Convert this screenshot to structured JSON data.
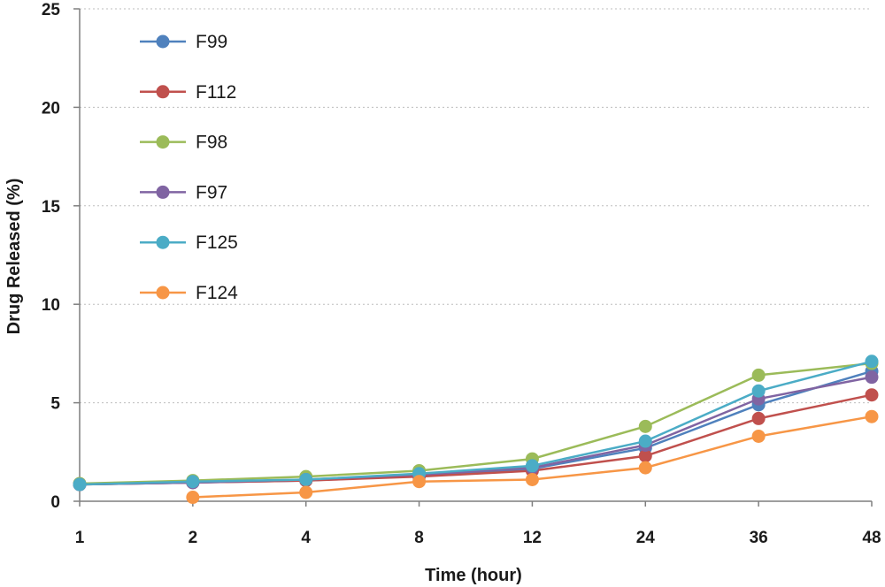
{
  "chart_data": {
    "type": "line",
    "title": "",
    "xlabel": "Time (hour)",
    "ylabel": "Drug Released (%)",
    "categories": [
      "1",
      "2",
      "4",
      "8",
      "12",
      "24",
      "36",
      "48"
    ],
    "yticks": [
      "0",
      "5",
      "10",
      "15",
      "20",
      "25"
    ],
    "ylim": [
      0,
      25
    ],
    "grid": true,
    "legend_position": "top-left",
    "series": [
      {
        "name": "F99",
        "color": "#4F81BD",
        "values": [
          0.85,
          0.95,
          1.05,
          1.3,
          1.65,
          2.7,
          4.9,
          6.6
        ]
      },
      {
        "name": "F112",
        "color": "#C0504D",
        "values": [
          0.85,
          0.95,
          1.05,
          1.25,
          1.55,
          2.3,
          4.2,
          5.4
        ]
      },
      {
        "name": "F98",
        "color": "#9BBB59",
        "values": [
          0.9,
          1.05,
          1.25,
          1.55,
          2.15,
          3.8,
          6.4,
          7.0
        ]
      },
      {
        "name": "F97",
        "color": "#8064A2",
        "values": [
          0.85,
          0.95,
          1.1,
          1.35,
          1.7,
          2.85,
          5.2,
          6.3
        ]
      },
      {
        "name": "F125",
        "color": "#4BACC6",
        "values": [
          0.85,
          1.0,
          1.1,
          1.4,
          1.8,
          3.05,
          5.6,
          7.1
        ]
      },
      {
        "name": "F124",
        "color": "#F79646",
        "values": [
          null,
          0.2,
          0.45,
          1.0,
          1.1,
          1.7,
          3.3,
          4.3
        ]
      }
    ]
  }
}
